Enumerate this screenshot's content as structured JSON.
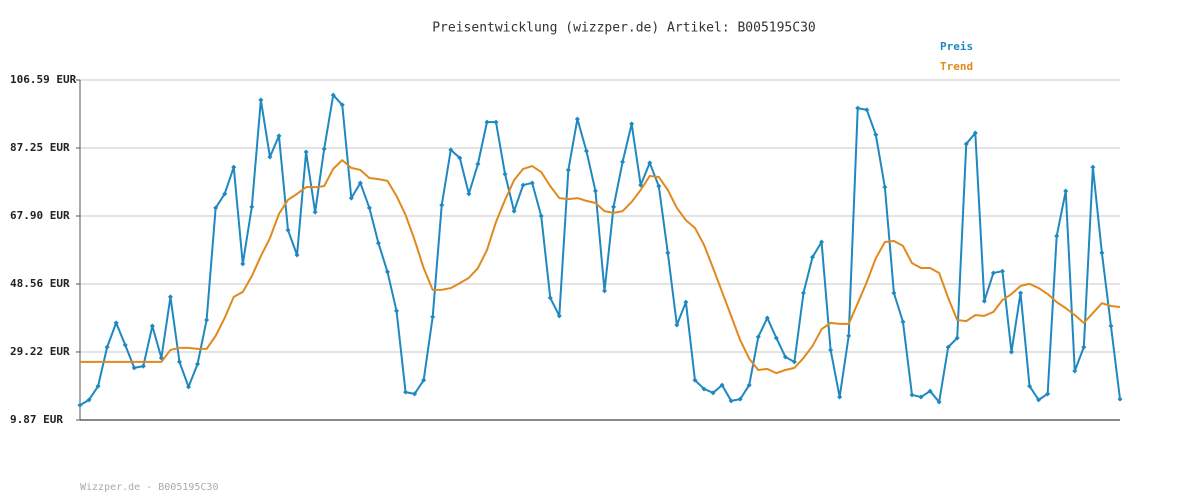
{
  "chart_data": {
    "type": "line",
    "title": "Preisentwicklung (wizzper.de) Artikel: B005195C30",
    "footer": "Wizzper.de - B005195C30",
    "ylim": [
      9.87,
      106.59
    ],
    "yticks": [
      {
        "value": 9.87,
        "label": "9.87 EUR"
      },
      {
        "value": 29.22,
        "label": "29.22 EUR"
      },
      {
        "value": 48.56,
        "label": "48.56 EUR"
      },
      {
        "value": 67.9,
        "label": "67.90 EUR"
      },
      {
        "value": 87.25,
        "label": "87.25 EUR"
      },
      {
        "value": 106.59,
        "label": "106.59 EUR"
      }
    ],
    "grid": true,
    "legend": "top-right",
    "series": [
      {
        "name": "Preis",
        "color": "#1f88c0",
        "markers": true,
        "values": [
          14.1,
          15.6,
          19.5,
          30.6,
          37.5,
          31.2,
          24.7,
          25.2,
          36.6,
          27.5,
          44.9,
          26.4,
          19.3,
          25.8,
          38.3,
          70.2,
          74.2,
          81.8,
          54.3,
          70.5,
          100.9,
          84.7,
          90.7,
          63.9,
          56.8,
          86.1,
          69.0,
          87.0,
          102.3,
          99.5,
          73.0,
          77.3,
          70.2,
          60.2,
          52.0,
          40.9,
          17.8,
          17.3,
          21.2,
          39.2,
          71.0,
          86.7,
          84.4,
          74.2,
          82.7,
          94.6,
          94.6,
          79.8,
          69.3,
          76.7,
          77.3,
          67.9,
          44.6,
          39.5,
          81.0,
          95.5,
          86.4,
          75.0,
          46.6,
          70.5,
          83.3,
          94.1,
          76.7,
          83.0,
          76.4,
          57.4,
          36.9,
          43.4,
          21.2,
          18.7,
          17.6,
          19.8,
          15.3,
          15.8,
          19.8,
          33.5,
          38.9,
          33.2,
          27.8,
          26.4,
          46.0,
          56.2,
          60.5,
          29.8,
          16.4,
          33.8,
          98.6,
          98.1,
          91.0,
          76.1,
          46.0,
          37.8,
          17.0,
          16.4,
          18.1,
          15.0,
          30.6,
          33.2,
          88.4,
          91.5,
          43.7,
          51.7,
          52.2,
          29.2,
          46.0,
          19.5,
          15.6,
          17.3,
          62.2,
          75.0,
          23.8,
          30.6,
          81.8,
          57.4,
          36.6,
          15.8
        ]
      },
      {
        "name": "Trend",
        "color": "#e08a1e",
        "markers": false,
        "values": [
          26.4,
          26.4,
          26.4,
          26.4,
          26.4,
          26.4,
          26.4,
          26.4,
          26.4,
          26.4,
          29.8,
          30.4,
          30.4,
          30.1,
          30.1,
          33.8,
          38.9,
          44.9,
          46.3,
          50.8,
          56.5,
          61.6,
          68.5,
          72.5,
          74.2,
          76.1,
          76.1,
          76.4,
          81.3,
          83.8,
          81.6,
          81.0,
          78.7,
          78.4,
          77.9,
          73.6,
          68.2,
          61.1,
          53.1,
          46.9,
          46.9,
          47.4,
          48.8,
          50.3,
          53.1,
          58.2,
          66.2,
          72.5,
          78.1,
          81.3,
          82.1,
          80.4,
          76.4,
          73.0,
          72.7,
          73.0,
          72.2,
          71.6,
          69.3,
          68.8,
          69.3,
          71.9,
          75.3,
          79.3,
          79.0,
          75.3,
          70.2,
          66.7,
          64.5,
          59.7,
          53.1,
          46.3,
          39.5,
          32.6,
          27.3,
          24.1,
          24.4,
          23.2,
          24.1,
          24.7,
          27.5,
          30.9,
          35.7,
          37.5,
          37.2,
          37.2,
          43.1,
          49.1,
          55.9,
          60.5,
          60.8,
          59.4,
          54.5,
          53.1,
          53.1,
          51.7,
          44.6,
          38.3,
          38.0,
          39.7,
          39.5,
          40.6,
          44.0,
          45.7,
          48.0,
          48.6,
          47.4,
          45.7,
          43.4,
          41.7,
          39.7,
          37.5,
          40.3,
          43.1,
          42.3,
          42.0
        ]
      }
    ]
  }
}
